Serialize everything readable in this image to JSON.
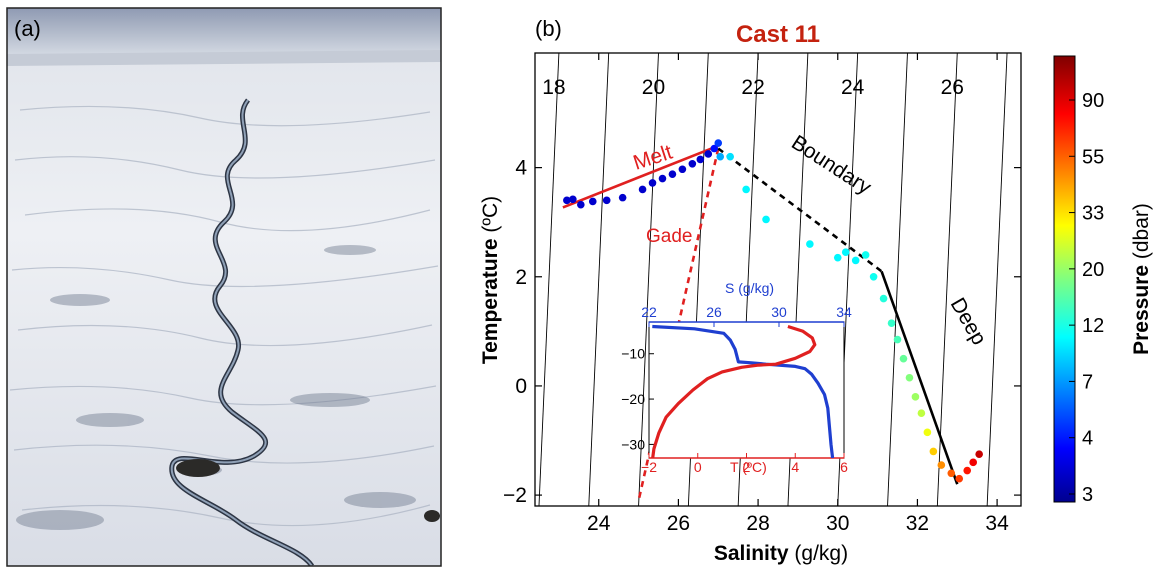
{
  "panel_a": {
    "label": "(a)"
  },
  "panel_b": {
    "label": "(b)"
  },
  "chart_data": [
    {
      "type": "scatter",
      "title": "Cast 11",
      "title_color": "#c4220f",
      "xlabel": {
        "bold": "Salinity",
        "unit": "(g/kg)"
      },
      "ylabel": {
        "bold": "Temperature",
        "unit": "(ºC)"
      },
      "xlim": [
        22.4,
        34.6
      ],
      "ylim": [
        -2.2,
        6.1
      ],
      "xticks": [
        24,
        26,
        28,
        30,
        32,
        34
      ],
      "yticks": [
        -2,
        0,
        2,
        4
      ],
      "grid": false,
      "isopycnals": {
        "labels": [
          "18",
          "20",
          "22",
          "24",
          "26"
        ],
        "lines": [
          {
            "s_top": 23.0,
            "s_bottom": 22.5
          },
          {
            "s_top": 24.25,
            "s_bottom": 23.75
          },
          {
            "s_top": 25.5,
            "s_bottom": 25.0
          },
          {
            "s_top": 26.75,
            "s_bottom": 26.25
          },
          {
            "s_top": 28.0,
            "s_bottom": 27.5
          },
          {
            "s_top": 29.25,
            "s_bottom": 28.75
          },
          {
            "s_top": 30.5,
            "s_bottom": 30.0
          },
          {
            "s_top": 31.75,
            "s_bottom": 31.25
          },
          {
            "s_top": 33.0,
            "s_bottom": 32.5
          },
          {
            "s_top": 34.25,
            "s_bottom": 33.75
          }
        ]
      },
      "reference_lines": [
        {
          "name": "Melt",
          "color": "#e02020",
          "style": "solid",
          "points": [
            [
              23.1,
              3.27
            ],
            [
              27.0,
              4.4
            ]
          ]
        },
        {
          "name": "Gade",
          "color": "#e02020",
          "style": "dashed",
          "points": [
            [
              27.0,
              4.35
            ],
            [
              25.0,
              -2.1
            ]
          ]
        },
        {
          "name": "Boundary",
          "color": "#000000",
          "style": "dashed",
          "points": [
            [
              27.0,
              4.35
            ],
            [
              31.1,
              2.1
            ]
          ]
        },
        {
          "name": "Deep",
          "color": "#000000",
          "style": "solid",
          "points": [
            [
              31.1,
              2.1
            ],
            [
              33.0,
              -1.8
            ]
          ]
        }
      ],
      "annotations": [
        "Melt",
        "Gade",
        "Boundary",
        "Deep"
      ],
      "series": [
        {
          "points": [
            {
              "s": 23.2,
              "t": 3.4,
              "p": 4
            },
            {
              "s": 23.35,
              "t": 3.42,
              "p": 4
            },
            {
              "s": 23.55,
              "t": 3.32,
              "p": 4
            },
            {
              "s": 23.85,
              "t": 3.38,
              "p": 4
            },
            {
              "s": 24.2,
              "t": 3.4,
              "p": 4
            },
            {
              "s": 24.6,
              "t": 3.45,
              "p": 4
            },
            {
              "s": 25.1,
              "t": 3.6,
              "p": 4
            },
            {
              "s": 25.35,
              "t": 3.72,
              "p": 4
            },
            {
              "s": 25.6,
              "t": 3.8,
              "p": 4
            },
            {
              "s": 25.85,
              "t": 3.88,
              "p": 4
            },
            {
              "s": 26.1,
              "t": 3.97,
              "p": 4
            },
            {
              "s": 26.35,
              "t": 4.07,
              "p": 4
            },
            {
              "s": 26.55,
              "t": 4.15,
              "p": 4
            },
            {
              "s": 26.75,
              "t": 4.25,
              "p": 4
            },
            {
              "s": 26.9,
              "t": 4.35,
              "p": 5
            },
            {
              "s": 27.0,
              "t": 4.45,
              "p": 6
            },
            {
              "s": 27.05,
              "t": 4.2,
              "p": 9
            },
            {
              "s": 27.3,
              "t": 4.2,
              "p": 11
            },
            {
              "s": 27.7,
              "t": 3.6,
              "p": 12
            },
            {
              "s": 28.2,
              "t": 3.05,
              "p": 12
            },
            {
              "s": 29.3,
              "t": 2.6,
              "p": 12
            },
            {
              "s": 30.0,
              "t": 2.35,
              "p": 12
            },
            {
              "s": 30.2,
              "t": 2.45,
              "p": 12
            },
            {
              "s": 30.45,
              "t": 2.3,
              "p": 12
            },
            {
              "s": 30.7,
              "t": 2.4,
              "p": 13
            },
            {
              "s": 30.9,
              "t": 2.0,
              "p": 13
            },
            {
              "s": 31.15,
              "t": 1.6,
              "p": 14
            },
            {
              "s": 31.35,
              "t": 1.15,
              "p": 15
            },
            {
              "s": 31.5,
              "t": 0.85,
              "p": 16
            },
            {
              "s": 31.65,
              "t": 0.5,
              "p": 18
            },
            {
              "s": 31.8,
              "t": 0.15,
              "p": 20
            },
            {
              "s": 31.95,
              "t": -0.2,
              "p": 22
            },
            {
              "s": 32.1,
              "t": -0.5,
              "p": 25
            },
            {
              "s": 32.25,
              "t": -0.85,
              "p": 30
            },
            {
              "s": 32.4,
              "t": -1.2,
              "p": 38
            },
            {
              "s": 32.6,
              "t": -1.45,
              "p": 48
            },
            {
              "s": 32.85,
              "t": -1.6,
              "p": 58
            },
            {
              "s": 33.05,
              "t": -1.7,
              "p": 65
            },
            {
              "s": 33.25,
              "t": -1.55,
              "p": 75
            },
            {
              "s": 33.4,
              "t": -1.4,
              "p": 85
            },
            {
              "s": 33.55,
              "t": -1.25,
              "p": 100
            }
          ]
        }
      ],
      "colorbar": {
        "label_bold": "Pressure",
        "label_unit": "(dbar)",
        "ticks": [
          "3",
          "4",
          "7",
          "12",
          "20",
          "33",
          "55",
          "90"
        ]
      }
    },
    {
      "type": "line",
      "name": "inset",
      "top_axis": {
        "label": "S (g/kg)",
        "color": "#1f3fd0",
        "lim": [
          22,
          34
        ],
        "ticks": [
          22,
          26,
          30,
          34
        ]
      },
      "bottom_axis": {
        "label": "T (ºC)",
        "color": "#e02020",
        "lim": [
          -2,
          6
        ],
        "ticks": [
          -2,
          0,
          2,
          4,
          6
        ]
      },
      "ylim": [
        -33,
        -3
      ],
      "yticks": [
        -10,
        -20,
        -30
      ],
      "series": [
        {
          "axis": "top",
          "color": "#1f3fd0",
          "points": [
            [
              22.2,
              -4.0
            ],
            [
              24.8,
              -4.5
            ],
            [
              26.6,
              -5.5
            ],
            [
              27.0,
              -7.0
            ],
            [
              27.3,
              -9.0
            ],
            [
              27.5,
              -11.8
            ],
            [
              28.3,
              -12.0
            ],
            [
              29.2,
              -12.3
            ],
            [
              30.0,
              -12.5
            ],
            [
              31.0,
              -12.8
            ],
            [
              31.6,
              -13.3
            ],
            [
              32.0,
              -14.5
            ],
            [
              32.4,
              -16.5
            ],
            [
              32.8,
              -19.0
            ],
            [
              33.0,
              -22.0
            ],
            [
              33.1,
              -26.0
            ],
            [
              33.2,
              -30.0
            ],
            [
              33.3,
              -33.0
            ]
          ]
        },
        {
          "axis": "bottom",
          "color": "#e02020",
          "points": [
            [
              3.7,
              -4.0
            ],
            [
              4.3,
              -5.0
            ],
            [
              4.7,
              -6.5
            ],
            [
              4.8,
              -8.0
            ],
            [
              4.6,
              -9.5
            ],
            [
              4.0,
              -11.0
            ],
            [
              3.2,
              -12.3
            ],
            [
              2.5,
              -12.5
            ],
            [
              1.8,
              -13.0
            ],
            [
              1.0,
              -14.0
            ],
            [
              0.4,
              -15.5
            ],
            [
              -0.2,
              -18.0
            ],
            [
              -0.8,
              -21.0
            ],
            [
              -1.3,
              -24.0
            ],
            [
              -1.6,
              -27.5
            ],
            [
              -1.8,
              -31.0
            ],
            [
              -1.85,
              -33.0
            ]
          ]
        }
      ]
    }
  ]
}
